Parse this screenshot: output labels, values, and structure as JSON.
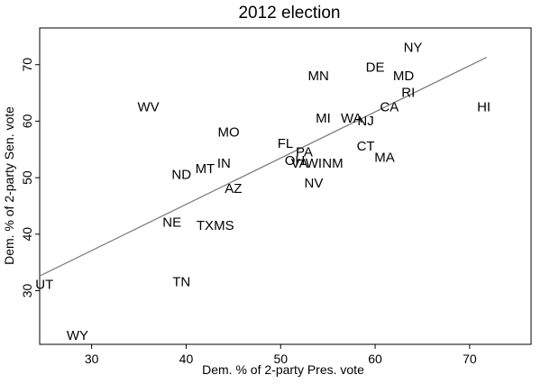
{
  "chart_data": {
    "type": "scatter",
    "title": "2012 election",
    "xlabel": "Dem. % of 2-party Pres. vote",
    "ylabel": "Dem. % of 2-party Sen. vote",
    "xlim": [
      24.5,
      76.5
    ],
    "ylim": [
      20.5,
      76.5
    ],
    "xticks": [
      30,
      40,
      50,
      60,
      70
    ],
    "yticks": [
      30,
      40,
      50,
      60,
      70
    ],
    "grid": false,
    "points": [
      {
        "label": "NY",
        "x": 64.0,
        "y": 73.0
      },
      {
        "label": "DE",
        "x": 60.0,
        "y": 69.5
      },
      {
        "label": "MN",
        "x": 54.0,
        "y": 68.0
      },
      {
        "label": "MD",
        "x": 63.0,
        "y": 68.0
      },
      {
        "label": "RI",
        "x": 63.5,
        "y": 65.0
      },
      {
        "label": "CA",
        "x": 61.5,
        "y": 62.5
      },
      {
        "label": "HI",
        "x": 71.5,
        "y": 62.5
      },
      {
        "label": "WV",
        "x": 36.0,
        "y": 62.5
      },
      {
        "label": "MI",
        "x": 54.5,
        "y": 60.5
      },
      {
        "label": "WA",
        "x": 57.5,
        "y": 60.5
      },
      {
        "label": "NJ",
        "x": 59.0,
        "y": 60.0
      },
      {
        "label": "MO",
        "x": 44.5,
        "y": 58.0
      },
      {
        "label": "FL",
        "x": 50.5,
        "y": 56.0
      },
      {
        "label": "CT",
        "x": 59.0,
        "y": 55.5
      },
      {
        "label": "PA",
        "x": 52.5,
        "y": 54.5
      },
      {
        "label": "MA",
        "x": 61.0,
        "y": 53.5
      },
      {
        "label": "OH",
        "x": 51.5,
        "y": 53.0
      },
      {
        "label": "VA",
        "x": 52.0,
        "y": 52.5
      },
      {
        "label": "WI",
        "x": 53.5,
        "y": 52.5
      },
      {
        "label": "NM",
        "x": 55.5,
        "y": 52.5
      },
      {
        "label": "IN",
        "x": 44.0,
        "y": 52.5
      },
      {
        "label": "MT",
        "x": 42.0,
        "y": 51.5
      },
      {
        "label": "ND",
        "x": 39.5,
        "y": 50.5
      },
      {
        "label": "NV",
        "x": 53.5,
        "y": 49.0
      },
      {
        "label": "AZ",
        "x": 45.0,
        "y": 48.0
      },
      {
        "label": "NE",
        "x": 38.5,
        "y": 42.0
      },
      {
        "label": "TX",
        "x": 42.0,
        "y": 41.5
      },
      {
        "label": "MS",
        "x": 44.0,
        "y": 41.5
      },
      {
        "label": "TN",
        "x": 39.5,
        "y": 31.5
      },
      {
        "label": "UT",
        "x": 25.0,
        "y": 31.0
      },
      {
        "label": "WY",
        "x": 28.5,
        "y": 22.0
      }
    ],
    "fit_line": {
      "x": [
        24.5,
        71.8
      ],
      "y": [
        32.6,
        71.3
      ]
    }
  }
}
